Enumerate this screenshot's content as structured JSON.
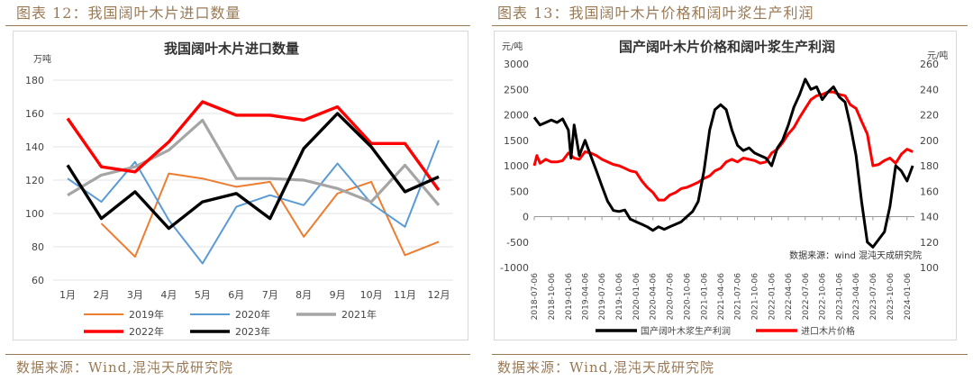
{
  "figures": [
    {
      "figure_title": "图表 12：我国阔叶木片进口数量",
      "source": "数据来源：Wind,混沌天成研究院"
    },
    {
      "figure_title": "图表 13：我国阔叶木片价格和阔叶浆生产利润",
      "source": "数据来源：Wind,混沌天成研究院"
    }
  ],
  "colors": {
    "accent": "#9a7a55",
    "s2019": "#ed7d31",
    "s2020": "#5b9bd5",
    "s2021": "#a5a5a5",
    "s2022": "#ff0000",
    "s2023": "#000000",
    "profit": "#000000",
    "price": "#ff0000"
  },
  "chart_data": [
    {
      "type": "line",
      "title": "我国阔叶木片进口数量",
      "ylabel": "万吨",
      "ylim": [
        60,
        180
      ],
      "yticks": [
        60,
        80,
        100,
        120,
        140,
        160,
        180
      ],
      "categories": [
        "1月",
        "2月",
        "3月",
        "4月",
        "5月",
        "6月",
        "7月",
        "8月",
        "9月",
        "10月",
        "11月",
        "12月"
      ],
      "legend_position": "bottom",
      "series": [
        {
          "name": "2019年",
          "color_key": "s2019",
          "values": [
            null,
            94,
            74,
            124,
            121,
            116,
            119,
            86,
            112,
            119,
            75,
            83
          ]
        },
        {
          "name": "2020年",
          "color_key": "s2020",
          "values": [
            121,
            107,
            131,
            96,
            70,
            104,
            111,
            105,
            130,
            106,
            92,
            144
          ]
        },
        {
          "name": "2021年",
          "color_key": "s2021",
          "values": [
            111,
            123,
            128,
            138,
            156,
            121,
            121,
            120,
            115,
            107,
            129,
            105
          ]
        },
        {
          "name": "2022年",
          "color_key": "s2022",
          "values": [
            157,
            128,
            125,
            143,
            167,
            159,
            159,
            156,
            164,
            142,
            142,
            114
          ]
        },
        {
          "name": "2023年",
          "color_key": "s2023",
          "values": [
            129,
            97,
            113,
            91,
            107,
            112,
            97,
            139,
            160,
            140,
            113,
            122
          ]
        }
      ]
    },
    {
      "type": "line",
      "title": "国产阔叶木片价格和阔叶浆生产利润",
      "ylabel_left": "元/吨",
      "ylabel_right": "元/吨",
      "ylim_left": [
        -1000,
        3000
      ],
      "yticks_left": [
        -1000,
        -500,
        0,
        500,
        1000,
        1500,
        2000,
        2500,
        3000
      ],
      "ylim_right": [
        100,
        260
      ],
      "yticks_right": [
        100,
        120,
        140,
        160,
        180,
        200,
        220,
        240,
        260
      ],
      "x_start": "2018-07-06",
      "x_ticks": [
        "2018-07-06",
        "2018-10-06",
        "2019-01-06",
        "2019-04-06",
        "2019-07-06",
        "2019-10-06",
        "2020-01-06",
        "2020-04-06",
        "2020-07-06",
        "2020-10-06",
        "2021-01-06",
        "2021-04-06",
        "2021-07-06",
        "2021-10-06",
        "2022-01-06",
        "2022-04-06",
        "2022-07-06",
        "2022-10-06",
        "2023-01-06",
        "2023-04-06",
        "2023-07-06",
        "2023-10-06",
        "2024-01-06"
      ],
      "annotation": "数据来源：wind  混沌天成研究院",
      "legend_position": "bottom",
      "series": [
        {
          "name": "国产阔叶木浆生产利润",
          "axis": "left",
          "color_key": "profit",
          "points": [
            [
              "2018-07-06",
              1950
            ],
            [
              "2018-08-06",
              1800
            ],
            [
              "2018-09-06",
              1850
            ],
            [
              "2018-10-06",
              1900
            ],
            [
              "2018-11-06",
              1850
            ],
            [
              "2018-12-06",
              1920
            ],
            [
              "2019-01-06",
              1700
            ],
            [
              "2019-01-20",
              1150
            ],
            [
              "2019-02-06",
              1800
            ],
            [
              "2019-03-06",
              1200
            ],
            [
              "2019-04-06",
              1500
            ],
            [
              "2019-05-06",
              1200
            ],
            [
              "2019-06-06",
              900
            ],
            [
              "2019-07-06",
              600
            ],
            [
              "2019-08-06",
              300
            ],
            [
              "2019-09-06",
              120
            ],
            [
              "2019-10-06",
              100
            ],
            [
              "2019-11-06",
              130
            ],
            [
              "2019-12-06",
              -50
            ],
            [
              "2020-01-06",
              -100
            ],
            [
              "2020-02-06",
              -150
            ],
            [
              "2020-03-06",
              -200
            ],
            [
              "2020-04-06",
              -270
            ],
            [
              "2020-05-06",
              -200
            ],
            [
              "2020-06-06",
              -250
            ],
            [
              "2020-07-06",
              -200
            ],
            [
              "2020-08-06",
              -150
            ],
            [
              "2020-09-06",
              -100
            ],
            [
              "2020-10-06",
              0
            ],
            [
              "2020-11-06",
              100
            ],
            [
              "2020-12-06",
              300
            ],
            [
              "2021-01-06",
              900
            ],
            [
              "2021-02-06",
              1700
            ],
            [
              "2021-03-06",
              2100
            ],
            [
              "2021-04-06",
              2200
            ],
            [
              "2021-05-06",
              2100
            ],
            [
              "2021-06-06",
              1700
            ],
            [
              "2021-07-06",
              1400
            ],
            [
              "2021-08-06",
              1300
            ],
            [
              "2021-09-06",
              1350
            ],
            [
              "2021-10-06",
              1250
            ],
            [
              "2021-11-06",
              1200
            ],
            [
              "2021-12-06",
              1150
            ],
            [
              "2022-01-06",
              1000
            ],
            [
              "2022-02-06",
              1350
            ],
            [
              "2022-03-06",
              1500
            ],
            [
              "2022-04-06",
              1800
            ],
            [
              "2022-05-06",
              2150
            ],
            [
              "2022-06-06",
              2400
            ],
            [
              "2022-07-06",
              2700
            ],
            [
              "2022-08-06",
              2500
            ],
            [
              "2022-09-06",
              2550
            ],
            [
              "2022-10-06",
              2300
            ],
            [
              "2022-11-06",
              2450
            ],
            [
              "2022-12-06",
              2550
            ],
            [
              "2023-01-06",
              2350
            ],
            [
              "2023-02-06",
              2250
            ],
            [
              "2023-03-06",
              1800
            ],
            [
              "2023-04-06",
              1200
            ],
            [
              "2023-05-06",
              300
            ],
            [
              "2023-06-06",
              -500
            ],
            [
              "2023-07-06",
              -600
            ],
            [
              "2023-08-06",
              -450
            ],
            [
              "2023-09-06",
              -300
            ],
            [
              "2023-10-06",
              200
            ],
            [
              "2023-11-06",
              1000
            ],
            [
              "2023-12-06",
              900
            ],
            [
              "2024-01-06",
              700
            ],
            [
              "2024-02-06",
              1000
            ]
          ]
        },
        {
          "name": "进口木片价格",
          "axis": "right",
          "color_key": "price",
          "points": [
            [
              "2018-07-06",
              180
            ],
            [
              "2018-07-20",
              188
            ],
            [
              "2018-08-06",
              182
            ],
            [
              "2018-09-06",
              185
            ],
            [
              "2018-10-06",
              183
            ],
            [
              "2018-11-06",
              183
            ],
            [
              "2018-12-06",
              184
            ],
            [
              "2019-01-06",
              190
            ],
            [
              "2019-02-06",
              186
            ],
            [
              "2019-03-06",
              185
            ],
            [
              "2019-04-06",
              191
            ],
            [
              "2019-05-06",
              190
            ],
            [
              "2019-06-06",
              188
            ],
            [
              "2019-07-06",
              185
            ],
            [
              "2019-08-06",
              183
            ],
            [
              "2019-09-06",
              181
            ],
            [
              "2019-10-06",
              180
            ],
            [
              "2019-11-06",
              178
            ],
            [
              "2019-12-06",
              176
            ],
            [
              "2020-01-06",
              175
            ],
            [
              "2020-02-06",
              168
            ],
            [
              "2020-03-06",
              163
            ],
            [
              "2020-04-06",
              159
            ],
            [
              "2020-05-06",
              153
            ],
            [
              "2020-06-06",
              153
            ],
            [
              "2020-07-06",
              157
            ],
            [
              "2020-08-06",
              159
            ],
            [
              "2020-09-06",
              162
            ],
            [
              "2020-10-06",
              163
            ],
            [
              "2020-11-06",
              165
            ],
            [
              "2020-12-06",
              167
            ],
            [
              "2021-01-06",
              170
            ],
            [
              "2021-02-06",
              172
            ],
            [
              "2021-03-06",
              176
            ],
            [
              "2021-04-06",
              178
            ],
            [
              "2021-05-06",
              183
            ],
            [
              "2021-06-06",
              185
            ],
            [
              "2021-07-06",
              183
            ],
            [
              "2021-08-06",
              186
            ],
            [
              "2021-09-06",
              185
            ],
            [
              "2021-10-06",
              184
            ],
            [
              "2021-11-06",
              182
            ],
            [
              "2021-12-06",
              183
            ],
            [
              "2022-01-06",
              190
            ],
            [
              "2022-02-06",
              193
            ],
            [
              "2022-03-06",
              198
            ],
            [
              "2022-04-06",
              205
            ],
            [
              "2022-05-06",
              210
            ],
            [
              "2022-06-06",
              218
            ],
            [
              "2022-07-06",
              225
            ],
            [
              "2022-08-06",
              232
            ],
            [
              "2022-09-06",
              235
            ],
            [
              "2022-10-06",
              236
            ],
            [
              "2022-11-06",
              238
            ],
            [
              "2022-12-06",
              238
            ],
            [
              "2023-01-06",
              236
            ],
            [
              "2023-02-06",
              235
            ],
            [
              "2023-03-06",
              228
            ],
            [
              "2023-04-06",
              225
            ],
            [
              "2023-05-06",
              215
            ],
            [
              "2023-06-06",
              205
            ],
            [
              "2023-07-06",
              180
            ],
            [
              "2023-08-06",
              181
            ],
            [
              "2023-09-06",
              184
            ],
            [
              "2023-10-06",
              186
            ],
            [
              "2023-11-06",
              182
            ],
            [
              "2023-12-06",
              189
            ],
            [
              "2024-01-06",
              193
            ],
            [
              "2024-02-06",
              191
            ]
          ]
        }
      ]
    }
  ]
}
